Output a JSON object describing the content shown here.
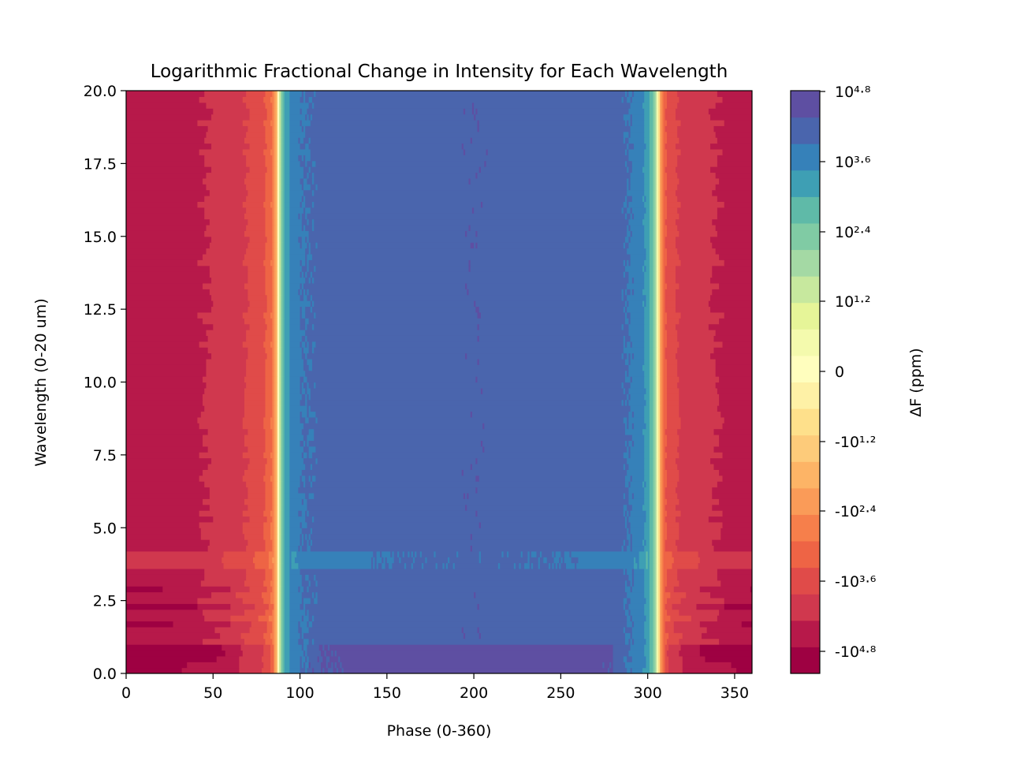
{
  "chart_data": {
    "type": "heatmap",
    "title": "Logarithmic Fractional Change in Intensity for Each Wavelength",
    "xlabel": "Phase (0-360)",
    "ylabel": "Wavelength (0-20 um)",
    "xlim": [
      0,
      360
    ],
    "ylim": [
      0,
      20
    ],
    "x_ticks": [
      0,
      50,
      100,
      150,
      200,
      250,
      300,
      350
    ],
    "x_tick_labels": [
      "0",
      "50",
      "100",
      "150",
      "200",
      "250",
      "300",
      "350"
    ],
    "y_ticks": [
      0,
      2.5,
      5,
      7.5,
      10,
      12.5,
      15,
      17.5,
      20
    ],
    "y_tick_labels": [
      "0.0",
      "2.5",
      "5.0",
      "7.5",
      "10.0",
      "12.5",
      "15.0",
      "17.5",
      "20.0"
    ],
    "colorbar": {
      "label": "ΔF (ppm)",
      "colormap": "Spectral",
      "ticks": [
        -4.8,
        -3.6,
        -2.4,
        -1.2,
        0,
        1.2,
        2.4,
        3.6,
        4.8
      ],
      "tick_labels": [
        "-10⁴·⁸",
        "-10³·⁶",
        "-10²·⁴",
        "-10¹·²",
        "0",
        "10¹·²",
        "10²·⁴",
        "10³·⁶",
        "10⁴·⁸"
      ],
      "levels": 22,
      "colors": [
        "#9e0142",
        "#b7194a",
        "#d0384e",
        "#e04b49",
        "#ee6445",
        "#f67f4b",
        "#fa9b58",
        "#fdb466",
        "#fdcb7a",
        "#fee08b",
        "#fef1a6",
        "#fffebe",
        "#f4faad",
        "#e6f598",
        "#c7e89e",
        "#a4d9a4",
        "#80cba4",
        "#5fbaa8",
        "#3e9fb4",
        "#3681b9",
        "#4a65ad",
        "#5e4fa2"
      ]
    },
    "phase_profile": {
      "phase": [
        0,
        20,
        40,
        55,
        65,
        72,
        78,
        82,
        85,
        86.5,
        87.5,
        88.5,
        90,
        92,
        95,
        100,
        110,
        130,
        160,
        200,
        240,
        270,
        285,
        295,
        300,
        303,
        305,
        306,
        307,
        308,
        310,
        315,
        320,
        330,
        345,
        360
      ],
      "log_value": [
        -4.1,
        -4.1,
        -4.0,
        -3.8,
        -3.6,
        -3.4,
        -3.2,
        -2.9,
        -2.4,
        -1.5,
        0.1,
        1.5,
        2.6,
        3.3,
        3.6,
        3.9,
        4.0,
        4.1,
        4.2,
        4.25,
        4.2,
        4.1,
        4.0,
        3.8,
        3.3,
        2.6,
        1.5,
        0.1,
        -1.5,
        -2.4,
        -3.0,
        -3.4,
        -3.6,
        -3.8,
        -4.0,
        -4.1
      ]
    }
  }
}
